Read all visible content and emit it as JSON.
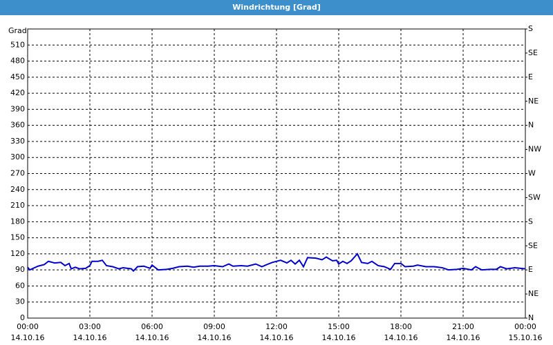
{
  "chart_data": {
    "type": "line",
    "title": "Windrichtung [Grad]",
    "y_label": "Grad",
    "x": [
      0,
      0.1,
      0.5,
      0.8,
      1,
      1.3,
      1.6,
      1.8,
      2,
      2.1,
      2.3,
      2.5,
      2.8,
      3,
      3.1,
      3.4,
      3.6,
      3.8,
      4.1,
      4.4,
      4.6,
      5,
      5.1,
      5.3,
      5.6,
      5.9,
      6,
      6.3,
      6.7,
      7,
      7.3,
      7.7,
      8,
      8.3,
      8.7,
      9,
      9.4,
      9.7,
      9.9,
      10.3,
      10.6,
      11,
      11.3,
      11.6,
      11.8,
      12.2,
      12.5,
      12.7,
      12.9,
      13.1,
      13.3,
      13.5,
      13.9,
      14.2,
      14.4,
      14.7,
      14.9,
      15,
      15.2,
      15.4,
      15.6,
      15.9,
      16.1,
      16.4,
      16.6,
      16.9,
      17.2,
      17.5,
      17.7,
      18,
      18.2,
      18.6,
      18.8,
      19.2,
      19.6,
      20,
      20.3,
      20.7,
      21,
      21.4,
      21.6,
      21.9,
      22.3,
      22.6,
      22.8,
      23.1,
      23.5,
      24
    ],
    "series": [
      {
        "name": "Windrichtung",
        "color": "#0000cc",
        "values": [
          95,
          90,
          97,
          100,
          106,
          103,
          104,
          98,
          102,
          92,
          95,
          92,
          93,
          98,
          106,
          106,
          108,
          98,
          96,
          92,
          94,
          92,
          88,
          96,
          97,
          93,
          99,
          90,
          91,
          93,
          96,
          97,
          95,
          97,
          97,
          98,
          96,
          101,
          97,
          98,
          97,
          101,
          96,
          101,
          104,
          108,
          103,
          108,
          101,
          108,
          96,
          113,
          112,
          109,
          114,
          107,
          108,
          101,
          106,
          102,
          107,
          120,
          104,
          102,
          106,
          98,
          96,
          91,
          102,
          102,
          96,
          97,
          99,
          96,
          96,
          94,
          90,
          91,
          93,
          90,
          96,
          90,
          91,
          91,
          96,
          92,
          94,
          92
        ]
      }
    ],
    "xlim": [
      0,
      24
    ],
    "xticks": [
      {
        "value": 0,
        "label": [
          "00:00",
          "14.10.16"
        ]
      },
      {
        "value": 3,
        "label": [
          "03:00",
          "14.10.16"
        ]
      },
      {
        "value": 6,
        "label": [
          "06:00",
          "14.10.16"
        ]
      },
      {
        "value": 9,
        "label": [
          "09:00",
          "14.10.16"
        ]
      },
      {
        "value": 12,
        "label": [
          "12:00",
          "14.10.16"
        ]
      },
      {
        "value": 15,
        "label": [
          "15:00",
          "14.10.16"
        ]
      },
      {
        "value": 18,
        "label": [
          "18:00",
          "14.10.16"
        ]
      },
      {
        "value": 21,
        "label": [
          "21:00",
          "14.10.16"
        ]
      },
      {
        "value": 24,
        "label": [
          "00:00",
          "15.10.16"
        ]
      }
    ],
    "ylim": [
      0,
      540
    ],
    "yticks": [
      0,
      30,
      60,
      90,
      120,
      150,
      180,
      210,
      240,
      270,
      300,
      330,
      360,
      390,
      420,
      450,
      480,
      510
    ],
    "y2lim": [
      0,
      540
    ],
    "y2ticks": [
      {
        "value": 0,
        "label": "N"
      },
      {
        "value": 45,
        "label": "NE"
      },
      {
        "value": 90,
        "label": "E"
      },
      {
        "value": 135,
        "label": "SE"
      },
      {
        "value": 180,
        "label": "S"
      },
      {
        "value": 225,
        "label": "SW"
      },
      {
        "value": 270,
        "label": "W"
      },
      {
        "value": 315,
        "label": "NW"
      },
      {
        "value": 360,
        "label": "N"
      },
      {
        "value": 405,
        "label": "NE"
      },
      {
        "value": 450,
        "label": "E"
      },
      {
        "value": 495,
        "label": "SE"
      },
      {
        "value": 540,
        "label": "S"
      }
    ],
    "grid": true
  }
}
